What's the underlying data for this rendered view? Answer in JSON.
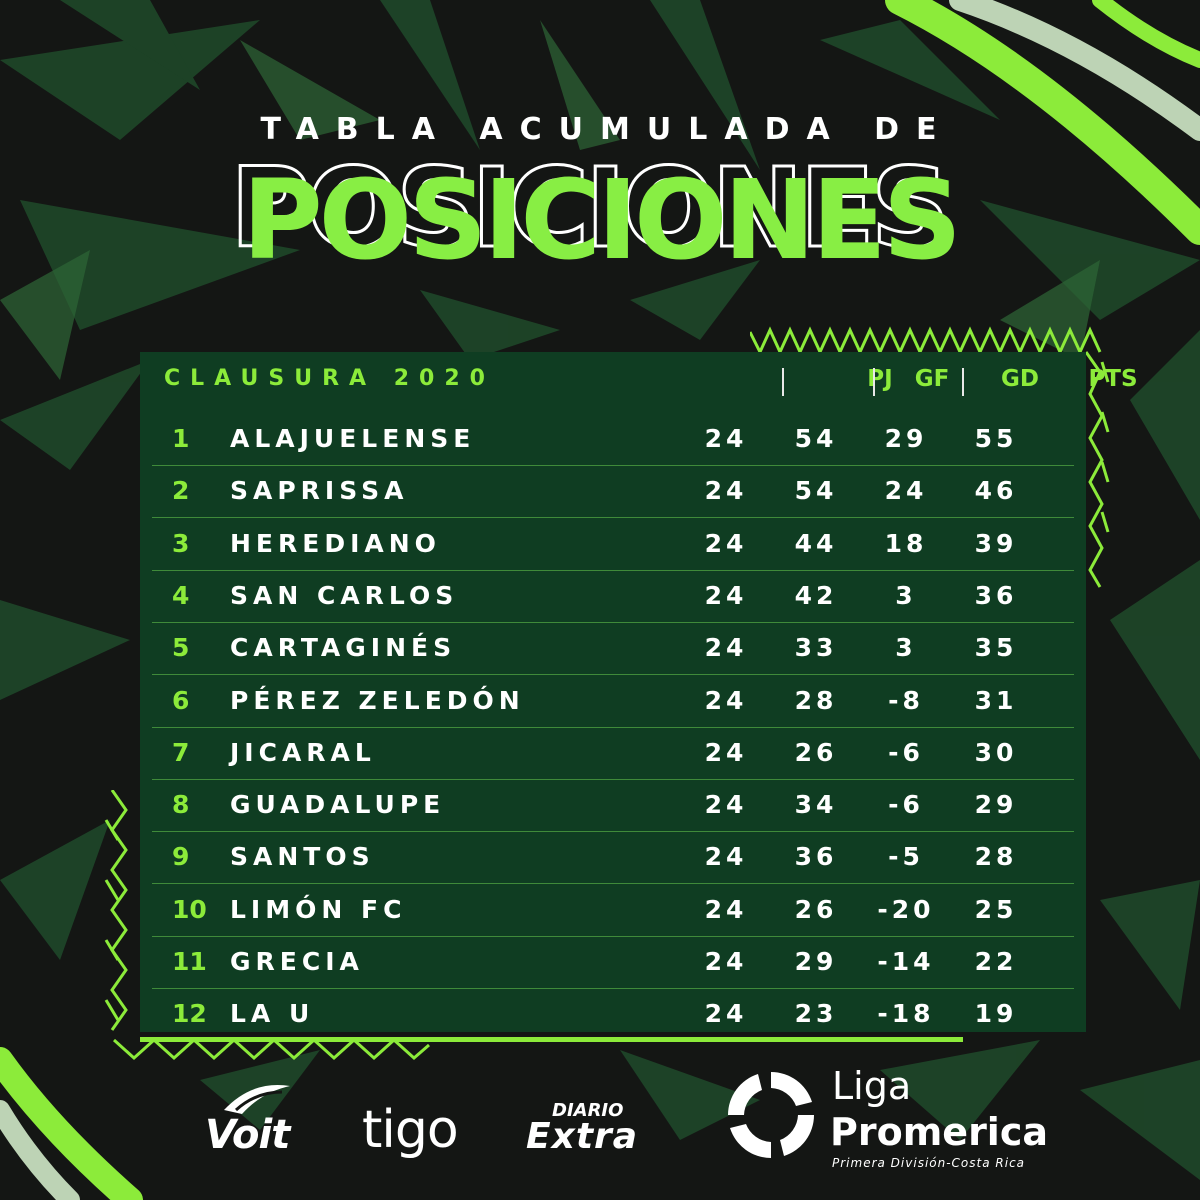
{
  "header": {
    "subtitle": "TABLA ACUMULADA DE",
    "title": "POSICIONES"
  },
  "table": {
    "season": "CLAUSURA 2020",
    "columns": [
      "PJ",
      "GF",
      "GD",
      "PTS"
    ],
    "rows": [
      {
        "pos": "1",
        "team": "ALAJUELENSE",
        "pj": "24",
        "gf": "54",
        "gd": "29",
        "pts": "55"
      },
      {
        "pos": "2",
        "team": "SAPRISSA",
        "pj": "24",
        "gf": "54",
        "gd": "24",
        "pts": "46"
      },
      {
        "pos": "3",
        "team": "HEREDIANO",
        "pj": "24",
        "gf": "44",
        "gd": "18",
        "pts": "39"
      },
      {
        "pos": "4",
        "team": "SAN CARLOS",
        "pj": "24",
        "gf": "42",
        "gd": "3",
        "pts": "36"
      },
      {
        "pos": "5",
        "team": "CARTAGINÉS",
        "pj": "24",
        "gf": "33",
        "gd": "3",
        "pts": "35"
      },
      {
        "pos": "6",
        "team": "PÉREZ ZELEDÓN",
        "pj": "24",
        "gf": "28",
        "gd": "-8",
        "pts": "31"
      },
      {
        "pos": "7",
        "team": "JICARAL",
        "pj": "24",
        "gf": "26",
        "gd": "-6",
        "pts": "30"
      },
      {
        "pos": "8",
        "team": "GUADALUPE",
        "pj": "24",
        "gf": "34",
        "gd": "-6",
        "pts": "29"
      },
      {
        "pos": "9",
        "team": "SANTOS",
        "pj": "24",
        "gf": "36",
        "gd": "-5",
        "pts": "28"
      },
      {
        "pos": "10",
        "team": "LIMÓN FC",
        "pj": "24",
        "gf": "26",
        "gd": "-20",
        "pts": "25"
      },
      {
        "pos": "11",
        "team": "GRECIA",
        "pj": "24",
        "gf": "29",
        "gd": "-14",
        "pts": "22"
      },
      {
        "pos": "12",
        "team": "LA U",
        "pj": "24",
        "gf": "23",
        "gd": "-18",
        "pts": "19"
      }
    ]
  },
  "sponsors": {
    "voit": "Voit",
    "tigo": "tigo",
    "diario_top": "DIARIO",
    "diario_bottom": "Extra",
    "liga_line1": "Liga",
    "liga_line2": "Promerica",
    "liga_line3": "Primera División-Costa Rica"
  },
  "colors": {
    "accent_green": "#8ceb3a",
    "panel_green": "#0f3d22",
    "background": "#141614"
  }
}
